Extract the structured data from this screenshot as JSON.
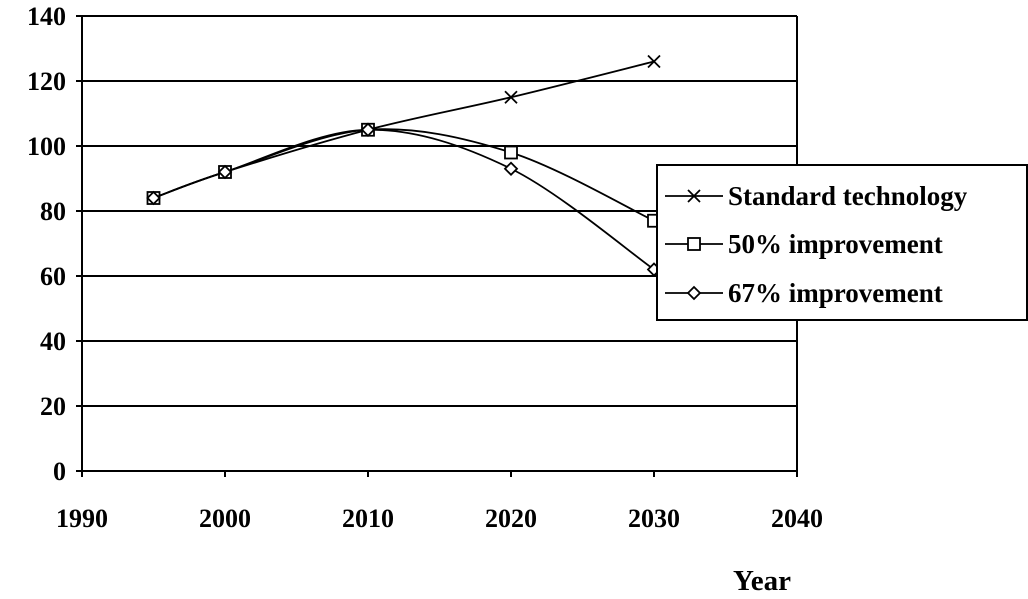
{
  "chart_data": {
    "type": "line",
    "title": "",
    "xlabel": "Year",
    "ylabel": "",
    "xlim": [
      1990,
      2040
    ],
    "ylim": [
      0,
      140
    ],
    "xticks": [
      1990,
      2000,
      2010,
      2020,
      2030,
      2040
    ],
    "yticks": [
      0,
      20,
      40,
      60,
      80,
      100,
      120,
      140
    ],
    "grid": "horizontal",
    "legend_position": "right",
    "series": [
      {
        "name": "Standard technology",
        "marker": "x",
        "color": "#000000",
        "x": [
          1995,
          2000,
          2010,
          2020,
          2030
        ],
        "y": [
          84,
          92,
          105,
          115,
          126
        ]
      },
      {
        "name": "50% improvement",
        "marker": "square",
        "color": "#000000",
        "x": [
          1995,
          2000,
          2010,
          2020,
          2030
        ],
        "y": [
          84,
          92,
          105,
          98,
          77
        ]
      },
      {
        "name": "67% improvement",
        "marker": "diamond",
        "color": "#000000",
        "x": [
          1995,
          2000,
          2010,
          2020,
          2030
        ],
        "y": [
          84,
          92,
          105,
          93,
          62
        ]
      }
    ]
  }
}
